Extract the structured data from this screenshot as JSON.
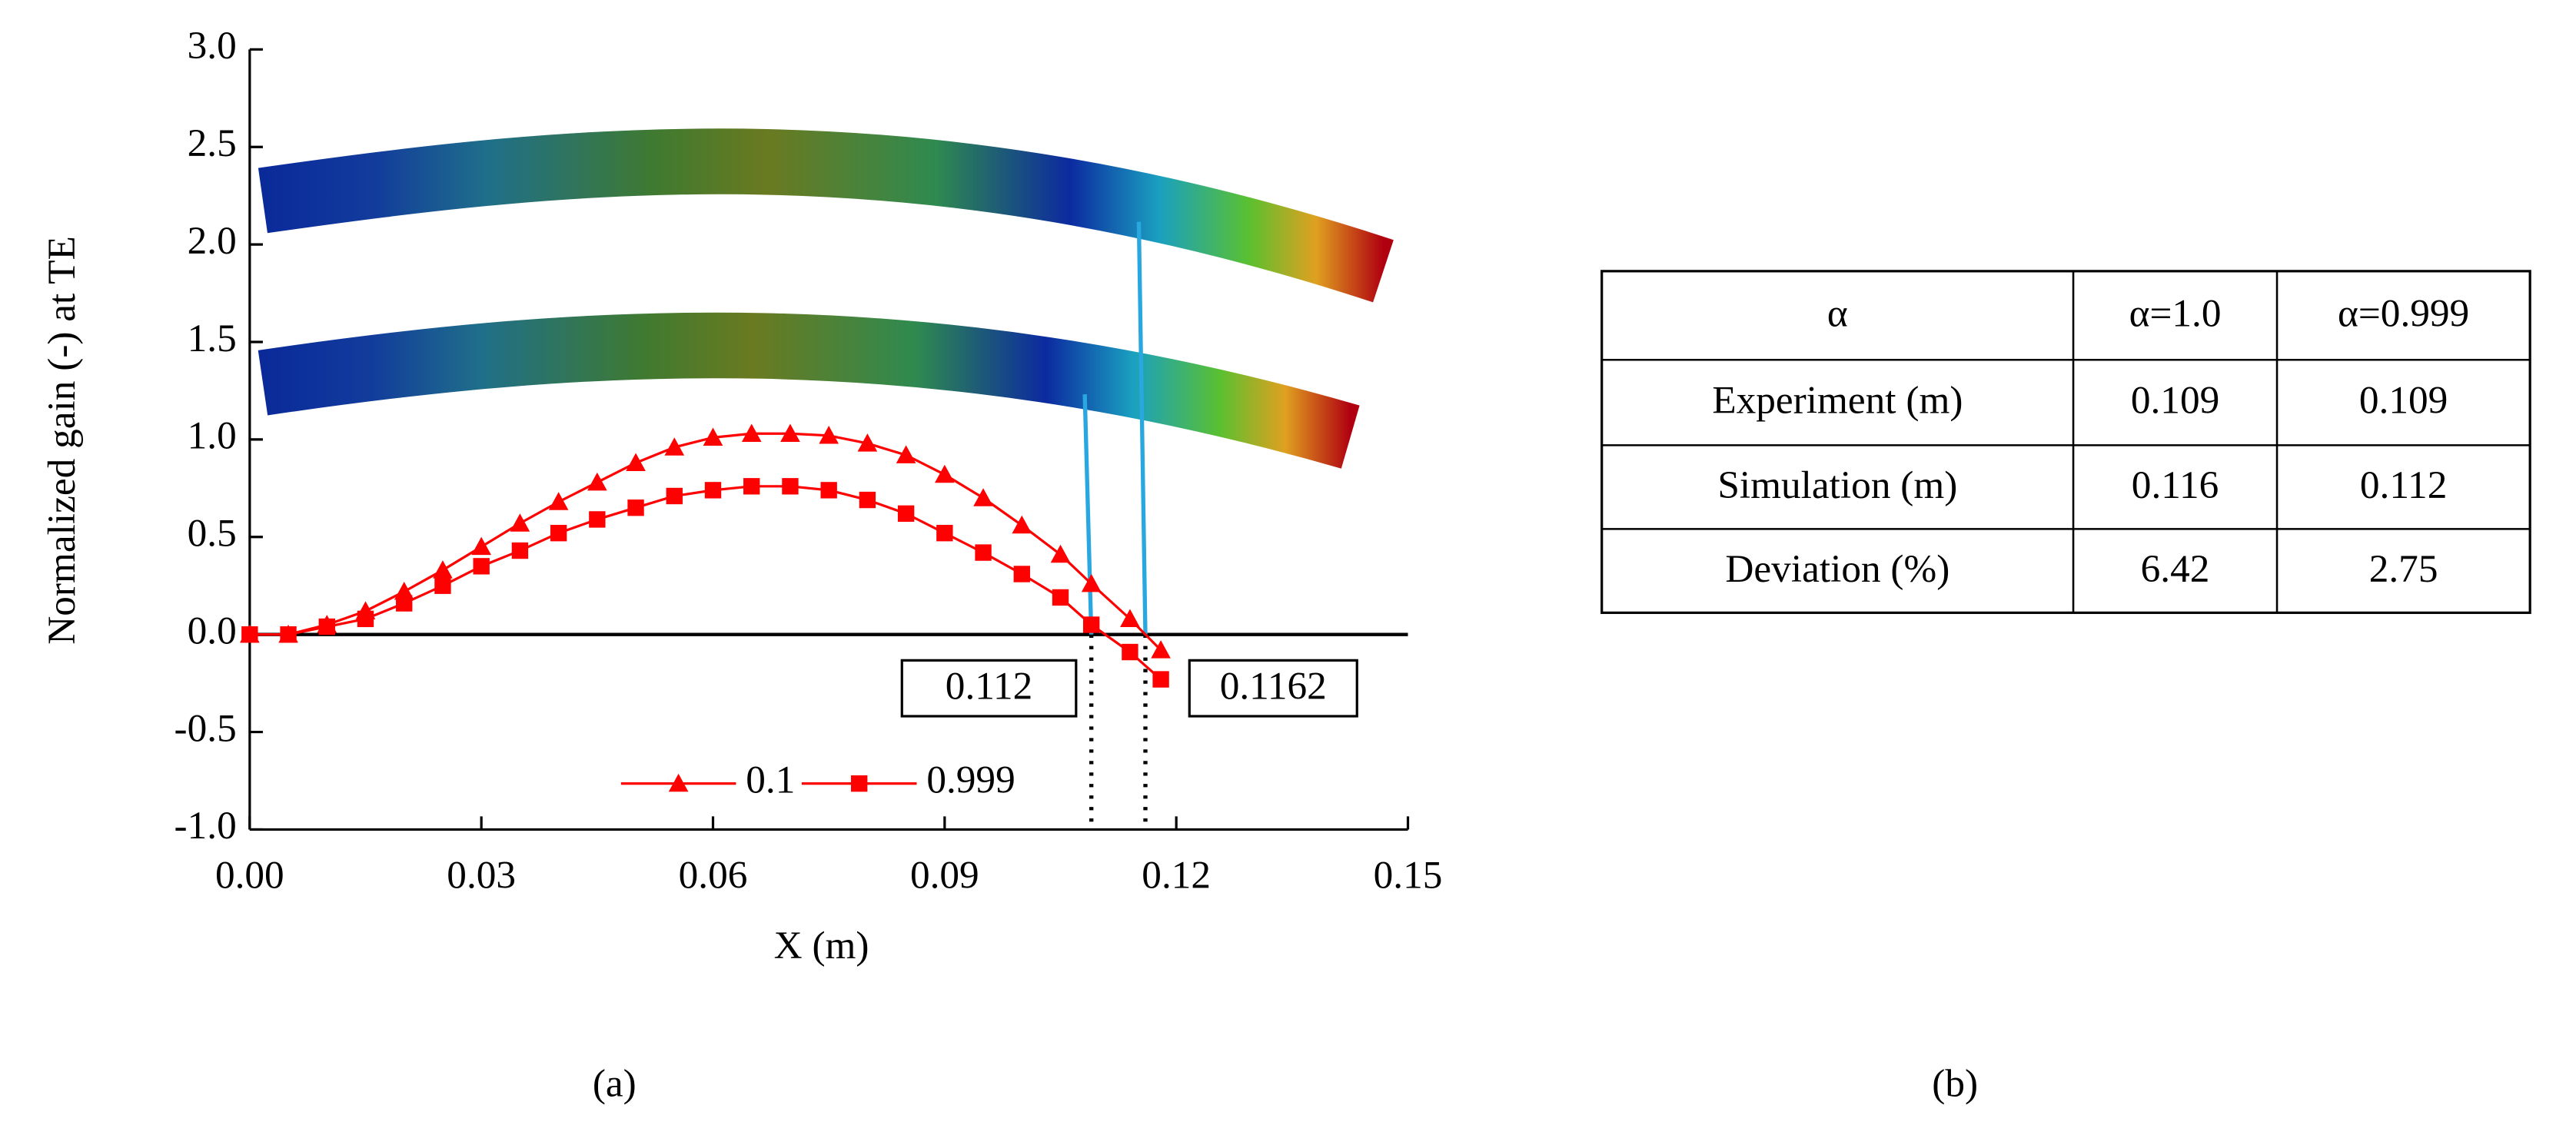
{
  "chart_data": {
    "type": "line",
    "xlabel": "X (m)",
    "ylabel": "Normalized gain (-) at TE",
    "xlim": [
      0,
      0.15
    ],
    "ylim": [
      -1,
      3
    ],
    "xticks": [
      {
        "value": 0,
        "label": "0.00"
      },
      {
        "value": 0.03,
        "label": "0.03"
      },
      {
        "value": 0.06,
        "label": "0.06"
      },
      {
        "value": 0.09,
        "label": "0.09"
      },
      {
        "value": 0.12,
        "label": "0.12"
      },
      {
        "value": 0.15,
        "label": "0.15"
      }
    ],
    "yticks": [
      {
        "value": -1,
        "label": "-1.0"
      },
      {
        "value": -0.5,
        "label": "-0.5"
      },
      {
        "value": 0,
        "label": "0.0"
      },
      {
        "value": 0.5,
        "label": "0.5"
      },
      {
        "value": 1,
        "label": "1.0"
      },
      {
        "value": 1.5,
        "label": "1.5"
      },
      {
        "value": 2,
        "label": "2.0"
      },
      {
        "value": 2.5,
        "label": "2.5"
      },
      {
        "value": 3,
        "label": "3.0"
      }
    ],
    "legend": "lower center",
    "series": [
      {
        "name": "0.1",
        "color": "#ff0000",
        "marker": "triangle",
        "x": [
          0,
          0.005,
          0.01,
          0.015,
          0.02,
          0.025,
          0.03,
          0.035,
          0.04,
          0.045,
          0.05,
          0.055,
          0.06,
          0.065,
          0.07,
          0.075,
          0.08,
          0.085,
          0.09,
          0.095,
          0.1,
          0.105,
          0.109,
          0.114,
          0.118
        ],
        "values": [
          0,
          0,
          0.05,
          0.12,
          0.22,
          0.33,
          0.45,
          0.57,
          0.68,
          0.78,
          0.88,
          0.96,
          1.01,
          1.03,
          1.03,
          1.02,
          0.98,
          0.92,
          0.82,
          0.7,
          0.56,
          0.41,
          0.26,
          0.08,
          -0.08
        ]
      },
      {
        "name": "0.999",
        "color": "#ff0000",
        "marker": "square",
        "x": [
          0,
          0.005,
          0.01,
          0.015,
          0.02,
          0.025,
          0.03,
          0.035,
          0.04,
          0.045,
          0.05,
          0.055,
          0.06,
          0.065,
          0.07,
          0.075,
          0.08,
          0.085,
          0.09,
          0.095,
          0.1,
          0.105,
          0.109,
          0.114,
          0.118
        ],
        "values": [
          0,
          0,
          0.04,
          0.08,
          0.16,
          0.25,
          0.35,
          0.43,
          0.52,
          0.59,
          0.65,
          0.71,
          0.74,
          0.76,
          0.76,
          0.74,
          0.69,
          0.62,
          0.52,
          0.42,
          0.31,
          0.19,
          0.05,
          -0.09,
          -0.23
        ]
      }
    ],
    "reference_lines": [
      0.109,
      0.116
    ],
    "annotations": [
      "0.112",
      "0.1162"
    ],
    "panel_label": "(a)"
  },
  "table": {
    "header": [
      "α",
      "α=1.0",
      "α=0.999"
    ],
    "rows": [
      [
        "Experiment (m)",
        "0.109",
        "0.109"
      ],
      [
        "Simulation (m)",
        "0.116",
        "0.112"
      ],
      [
        "Deviation (%)",
        "6.42",
        "2.75"
      ]
    ],
    "panel_label": "(b)"
  }
}
